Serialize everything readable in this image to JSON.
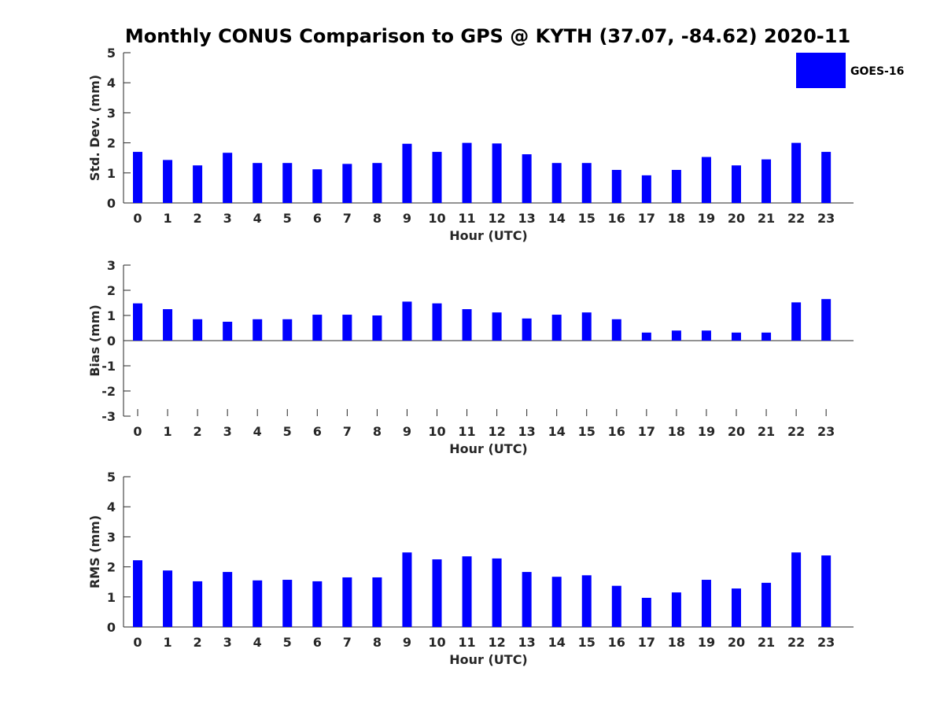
{
  "title": "Monthly CONUS Comparison to GPS @ KYTH (37.07, -84.62) 2020-11",
  "legend": {
    "label": "GOES-16",
    "color": "#0000ff"
  },
  "bar_color": "#0000ff",
  "chart_data": [
    {
      "type": "bar",
      "name": "std-dev",
      "xlabel": "Hour (UTC)",
      "ylabel": "Std. Dev. (mm)",
      "ylim": [
        0,
        5
      ],
      "yticks": [
        0,
        1,
        2,
        3,
        4,
        5
      ],
      "categories": [
        "0",
        "1",
        "2",
        "3",
        "4",
        "5",
        "6",
        "7",
        "8",
        "9",
        "10",
        "11",
        "12",
        "13",
        "14",
        "15",
        "16",
        "17",
        "18",
        "19",
        "20",
        "21",
        "22",
        "23"
      ],
      "series": [
        {
          "name": "GOES-16",
          "values": [
            1.7,
            1.43,
            1.25,
            1.67,
            1.33,
            1.33,
            1.12,
            1.3,
            1.33,
            1.97,
            1.7,
            2.0,
            1.98,
            1.62,
            1.33,
            1.33,
            1.1,
            0.92,
            1.1,
            1.53,
            1.25,
            1.45,
            2.0,
            1.7
          ]
        }
      ]
    },
    {
      "type": "bar",
      "name": "bias",
      "xlabel": "Hour (UTC)",
      "ylabel": "Bias (mm)",
      "ylim": [
        -3,
        3
      ],
      "yticks": [
        -3,
        -2,
        -1,
        0,
        1,
        2,
        3
      ],
      "categories": [
        "0",
        "1",
        "2",
        "3",
        "4",
        "5",
        "6",
        "7",
        "8",
        "9",
        "10",
        "11",
        "12",
        "13",
        "14",
        "15",
        "16",
        "17",
        "18",
        "19",
        "20",
        "21",
        "22",
        "23"
      ],
      "series": [
        {
          "name": "GOES-16",
          "values": [
            1.48,
            1.25,
            0.85,
            0.75,
            0.85,
            0.85,
            1.03,
            1.03,
            1.0,
            1.55,
            1.48,
            1.25,
            1.12,
            0.88,
            1.03,
            1.12,
            0.85,
            0.32,
            0.4,
            0.4,
            0.32,
            0.32,
            1.52,
            1.65
          ]
        }
      ]
    },
    {
      "type": "bar",
      "name": "rms",
      "xlabel": "Hour (UTC)",
      "ylabel": "RMS (mm)",
      "ylim": [
        0,
        5
      ],
      "yticks": [
        0,
        1,
        2,
        3,
        4,
        5
      ],
      "categories": [
        "0",
        "1",
        "2",
        "3",
        "4",
        "5",
        "6",
        "7",
        "8",
        "9",
        "10",
        "11",
        "12",
        "13",
        "14",
        "15",
        "16",
        "17",
        "18",
        "19",
        "20",
        "21",
        "22",
        "23"
      ],
      "series": [
        {
          "name": "GOES-16",
          "values": [
            2.22,
            1.88,
            1.52,
            1.83,
            1.55,
            1.57,
            1.52,
            1.65,
            1.65,
            2.48,
            2.25,
            2.35,
            2.28,
            1.83,
            1.67,
            1.72,
            1.37,
            0.97,
            1.15,
            1.57,
            1.28,
            1.47,
            2.48,
            2.38
          ]
        }
      ]
    }
  ]
}
